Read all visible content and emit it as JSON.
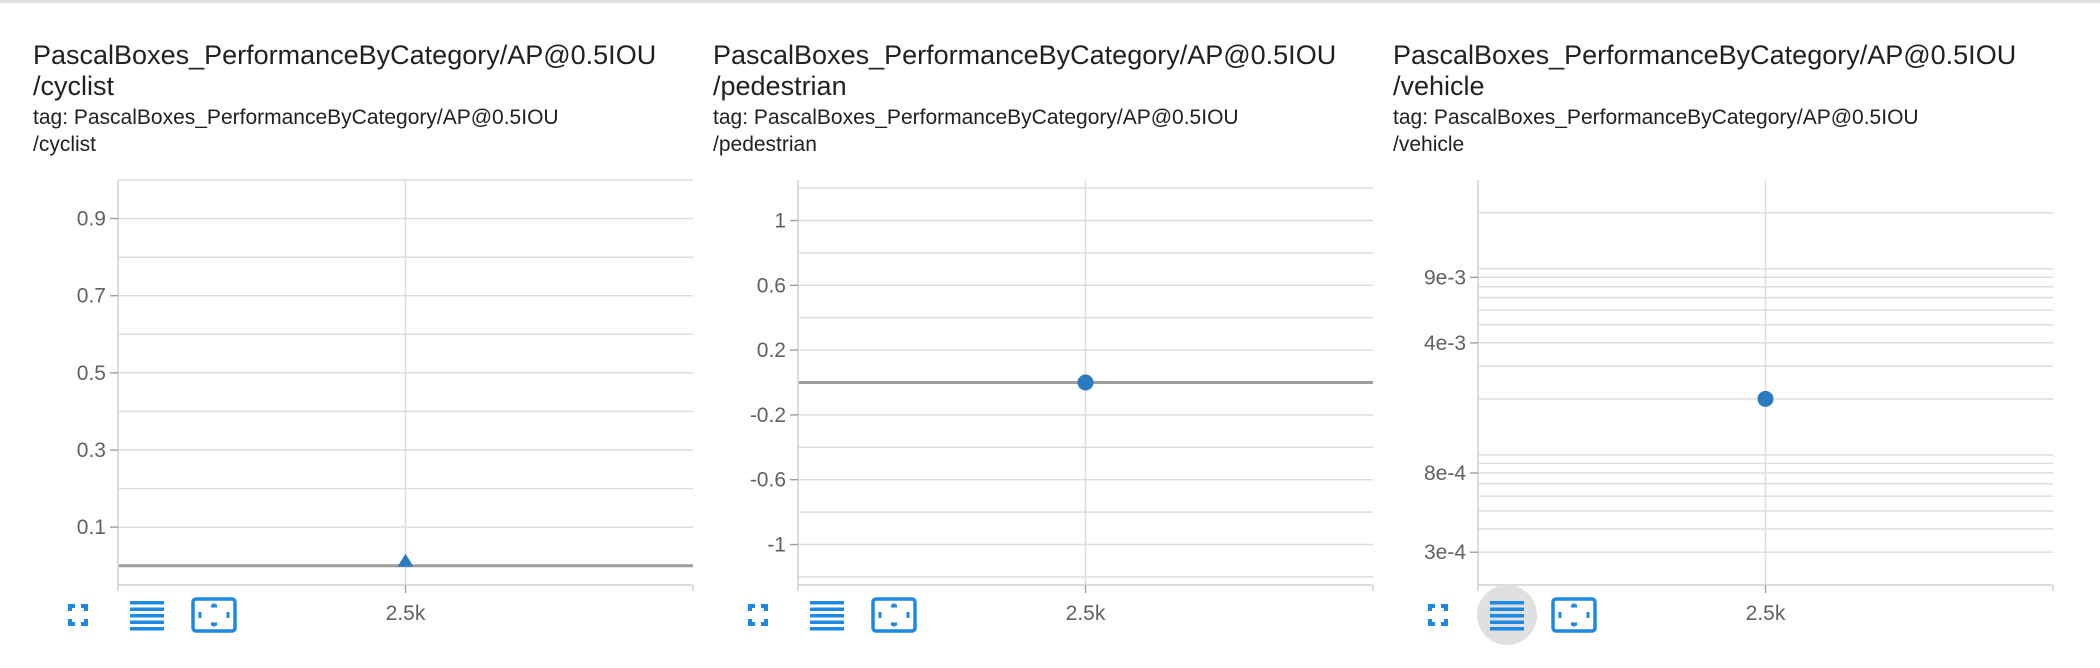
{
  "colors": {
    "accent": "#1e88e5",
    "point": "#2a7abf",
    "grid": "#dcdcdc",
    "axis": "#9e9e9e",
    "text": "#212121",
    "tick": "#616161"
  },
  "toolbar_icons": [
    "fullscreen-icon",
    "toggle-log-scale-icon",
    "fit-domain-icon"
  ],
  "cards": [
    {
      "title_line1": "PascalBoxes_PerformanceByCategory/AP@0.5IOU",
      "title_line2": "/cyclist",
      "tag_line1": "tag: PascalBoxes_PerformanceByCategory/AP@0.5IOU",
      "tag_line2": "/cyclist",
      "active_toolbar": -1
    },
    {
      "title_line1": "PascalBoxes_PerformanceByCategory/AP@0.5IOU",
      "title_line2": "/pedestrian",
      "tag_line1": "tag: PascalBoxes_PerformanceByCategory/AP@0.5IOU",
      "tag_line2": "/pedestrian",
      "active_toolbar": -1
    },
    {
      "title_line1": "PascalBoxes_PerformanceByCategory/AP@0.5IOU",
      "title_line2": "/vehicle",
      "tag_line1": "tag: PascalBoxes_PerformanceByCategory/AP@0.5IOU",
      "tag_line2": "/vehicle",
      "active_toolbar": 1
    }
  ],
  "chart_data": [
    {
      "type": "scatter",
      "title": "PascalBoxes_PerformanceByCategory/AP@0.5IOU/cyclist",
      "x": [
        2500
      ],
      "y": [
        0.0
      ],
      "marker": "triangle",
      "xlim": [
        1500,
        3500
      ],
      "ylim": [
        -0.05,
        1.0
      ],
      "scale": "linear",
      "x_ticks": [
        {
          "value": 2500,
          "label": "2.5k"
        }
      ],
      "y_ticks": [
        {
          "value": 0.1,
          "label": "0.1"
        },
        {
          "value": 0.3,
          "label": "0.3"
        },
        {
          "value": 0.5,
          "label": "0.5"
        },
        {
          "value": 0.7,
          "label": "0.7"
        },
        {
          "value": 0.9,
          "label": "0.9"
        }
      ],
      "y_grid": [
        0.0,
        0.1,
        0.2,
        0.3,
        0.4,
        0.5,
        0.6,
        0.7,
        0.8,
        0.9,
        1.0
      ],
      "baseline": 0,
      "grid": true
    },
    {
      "type": "scatter",
      "title": "PascalBoxes_PerformanceByCategory/AP@0.5IOU/pedestrian",
      "x": [
        2500
      ],
      "y": [
        0.0
      ],
      "marker": "circle",
      "xlim": [
        1500,
        3500
      ],
      "ylim": [
        -1.25,
        1.25
      ],
      "scale": "linear",
      "x_ticks": [
        {
          "value": 2500,
          "label": "2.5k"
        }
      ],
      "y_ticks": [
        {
          "value": 1,
          "label": "1"
        },
        {
          "value": 0.6,
          "label": "0.6"
        },
        {
          "value": 0.2,
          "label": "0.2"
        },
        {
          "value": -0.2,
          "label": "-0.2"
        },
        {
          "value": -0.6,
          "label": "-0.6"
        },
        {
          "value": -1,
          "label": "-1"
        }
      ],
      "y_grid": [
        -1.2,
        -1.0,
        -0.8,
        -0.6,
        -0.4,
        -0.2,
        0.2,
        0.4,
        0.6,
        0.8,
        1.0,
        1.2
      ],
      "baseline": 0,
      "grid": true
    },
    {
      "type": "scatter",
      "title": "PascalBoxes_PerformanceByCategory/AP@0.5IOU/vehicle",
      "x": [
        2500
      ],
      "y": [
        0.002
      ],
      "marker": "circle",
      "xlim": [
        1500,
        3500
      ],
      "ylim": [
        0.0002,
        0.03
      ],
      "scale": "log",
      "x_ticks": [
        {
          "value": 2500,
          "label": "2.5k"
        }
      ],
      "y_ticks": [
        {
          "value": 0.009,
          "label": "9e-3"
        },
        {
          "value": 0.004,
          "label": "4e-3"
        },
        {
          "value": 0.0008,
          "label": "8e-4"
        },
        {
          "value": 0.0003,
          "label": "3e-4"
        }
      ],
      "y_grid": [
        0.0003,
        0.0004,
        0.0005,
        0.0006,
        0.0007,
        0.0008,
        0.0009,
        0.001,
        0.002,
        0.003,
        0.004,
        0.005,
        0.006,
        0.007,
        0.008,
        0.009,
        0.01,
        0.02
      ],
      "grid": true
    }
  ]
}
